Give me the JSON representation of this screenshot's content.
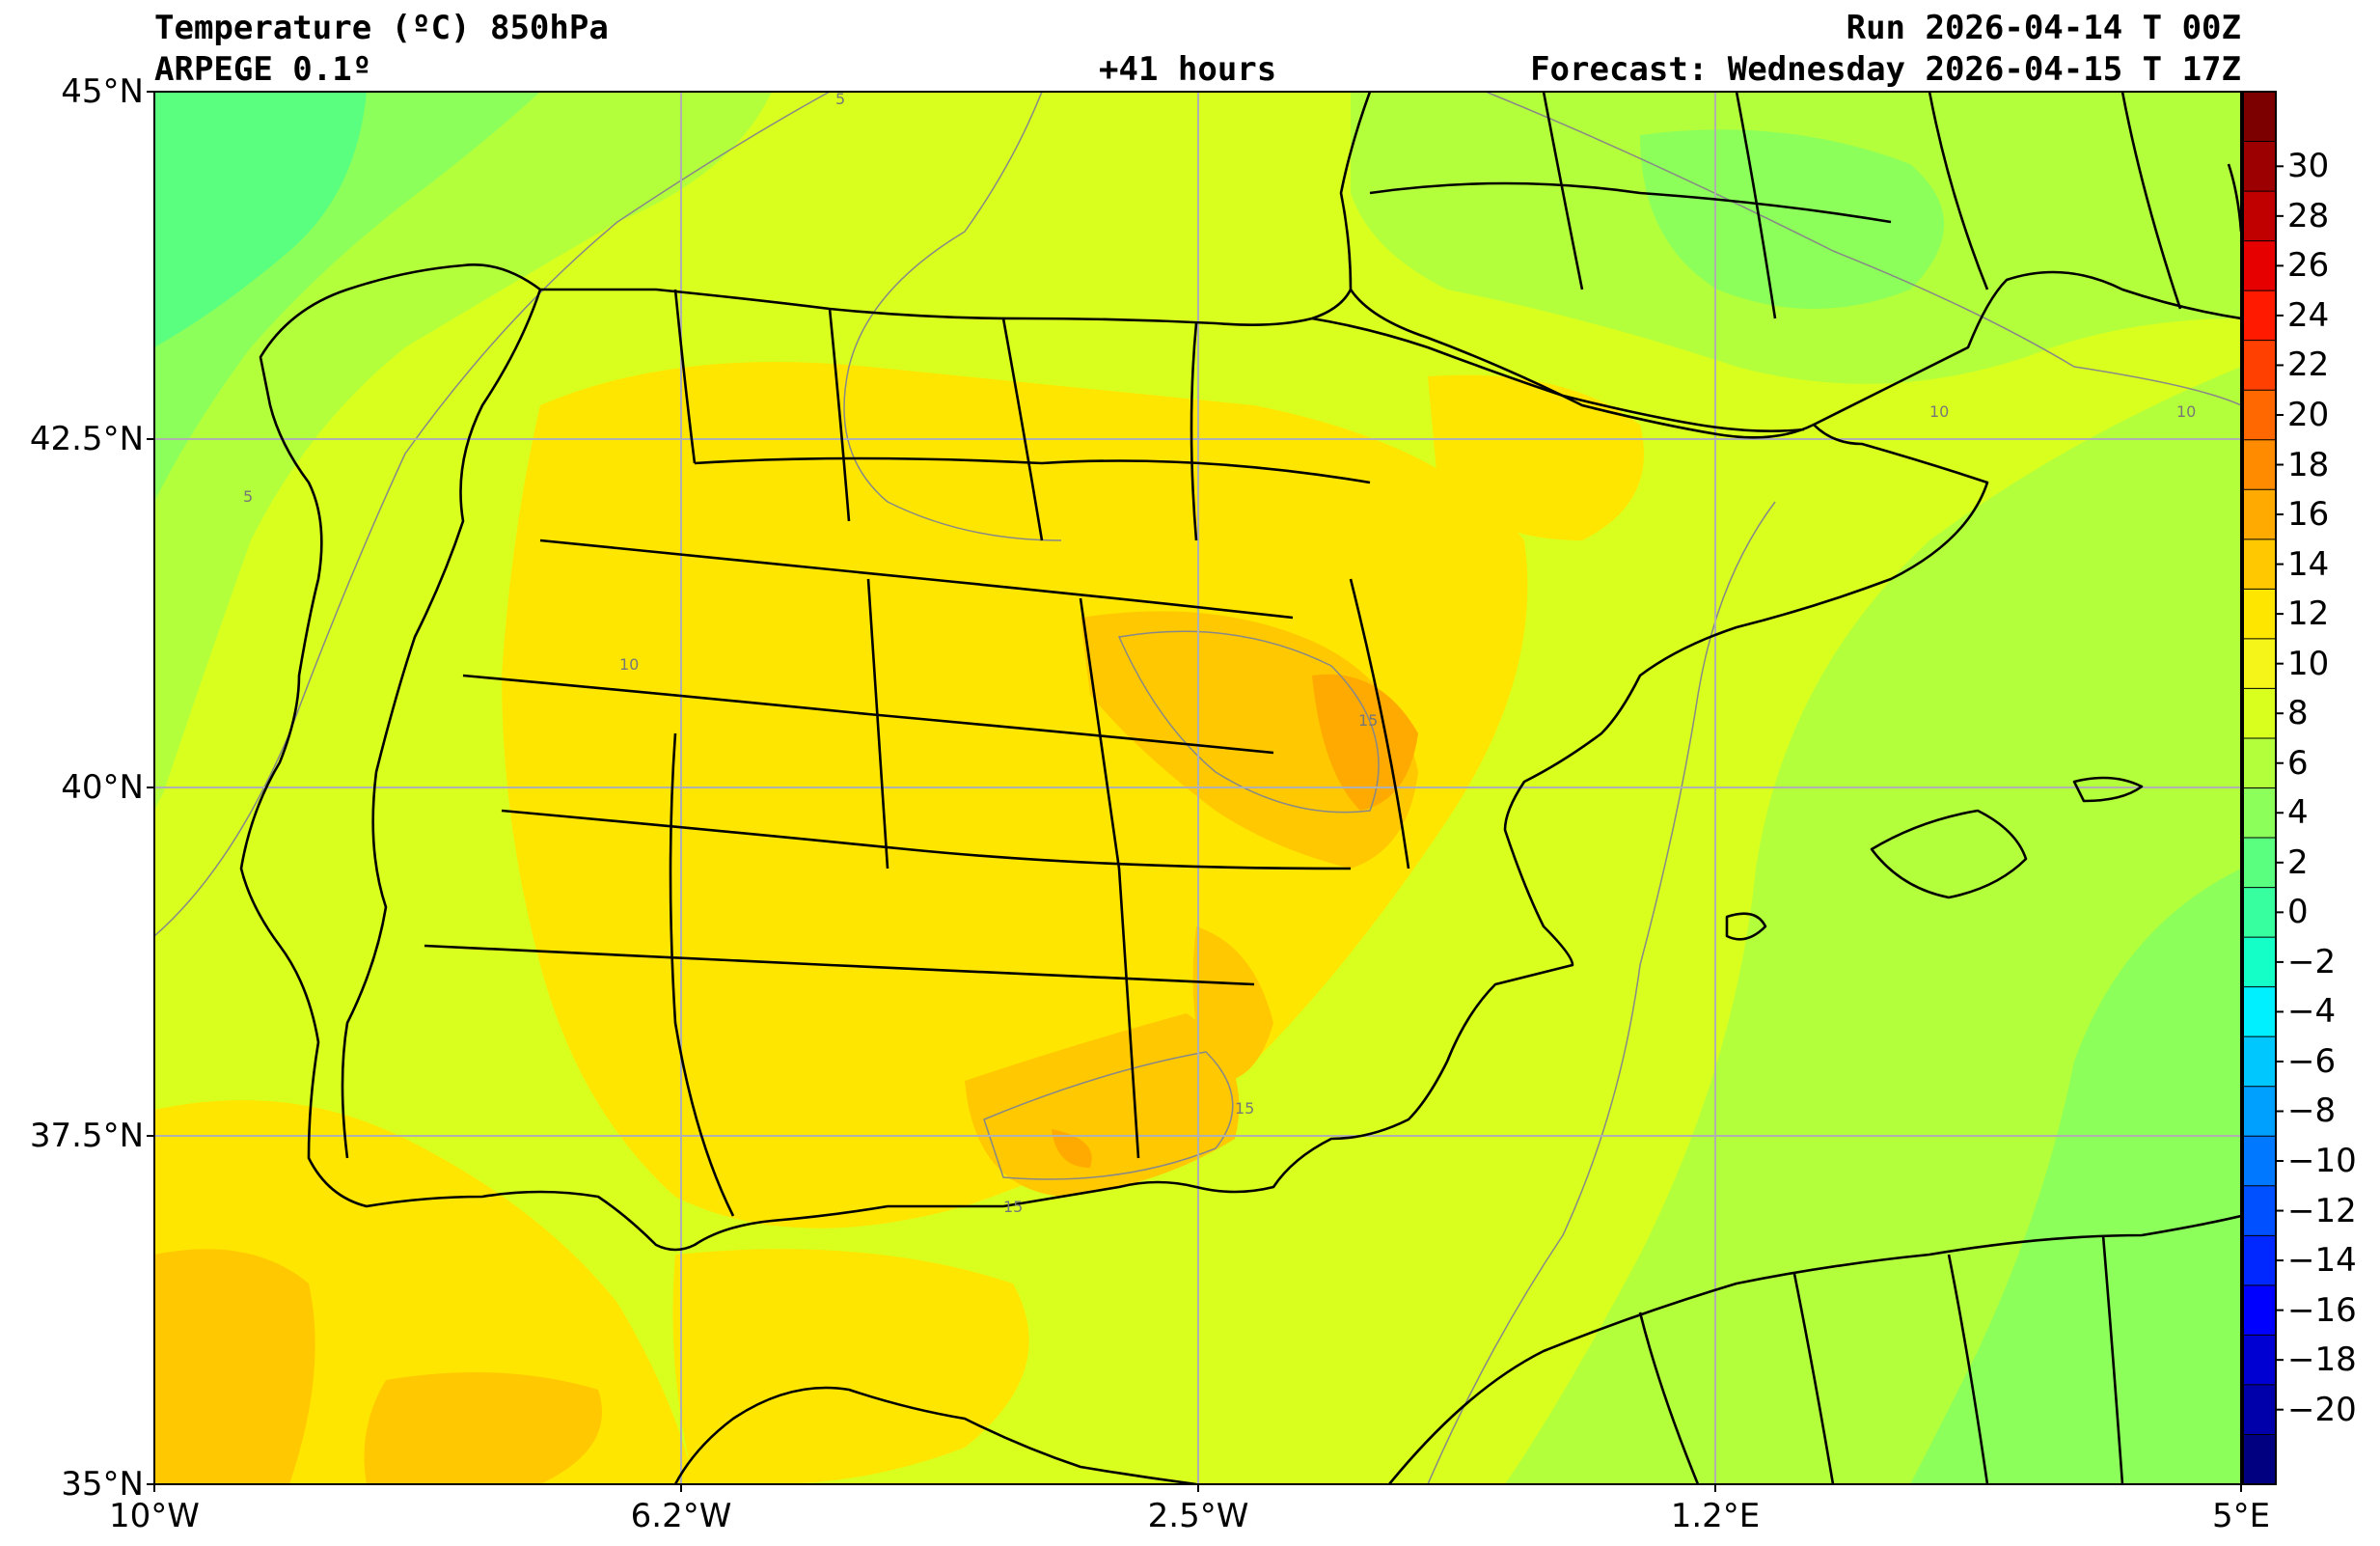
{
  "header": {
    "title_variable": "Temperature (ºC) 850hPa",
    "model": "ARPEGE 0.1º",
    "lead_time": "+41 hours",
    "run": "Run 2026-04-14 T 00Z",
    "forecast": "Forecast: Wednesday 2026-04-15 T 17Z"
  },
  "axes": {
    "lat_labels": [
      "45°N",
      "42.5°N",
      "40°N",
      "37.5°N",
      "35°N"
    ],
    "lon_labels": [
      "10°W",
      "6.2°W",
      "2.5°W",
      "1.2°E",
      "5°E"
    ]
  },
  "colorbar": {
    "labels": [
      "30",
      "28",
      "26",
      "24",
      "22",
      "20",
      "18",
      "16",
      "14",
      "12",
      "10",
      "8",
      "6",
      "4",
      "2",
      "0",
      "−2",
      "−4",
      "−6",
      "−8",
      "−10",
      "−12",
      "−14",
      "−16",
      "−18",
      "−20"
    ],
    "colors": [
      "#7d0000",
      "#9c0000",
      "#c00000",
      "#e60000",
      "#ff1a00",
      "#ff4000",
      "#ff6800",
      "#ff8c00",
      "#ffaa00",
      "#ffc800",
      "#ffe600",
      "#f5f51a",
      "#d9ff1f",
      "#b4ff3c",
      "#8cff5a",
      "#5aff80",
      "#37ffa0",
      "#14ffc8",
      "#00f0ff",
      "#00c8ff",
      "#00a0ff",
      "#0078ff",
      "#0050ff",
      "#0028ff",
      "#0000ff",
      "#0000d2",
      "#0000aa",
      "#000080"
    ]
  },
  "contour_labels": [
    "5",
    "5",
    "10",
    "10",
    "10",
    "15",
    "15",
    "15"
  ]
}
